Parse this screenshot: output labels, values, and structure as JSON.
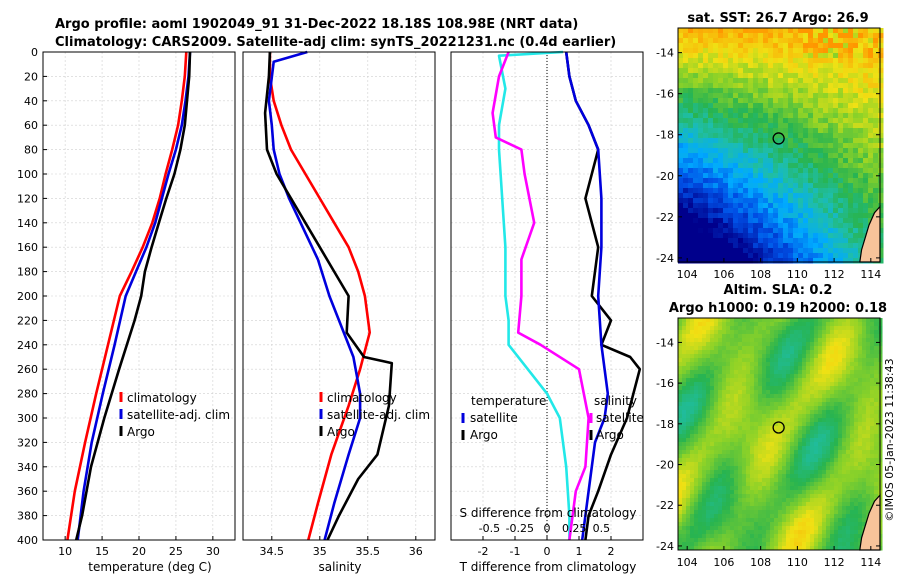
{
  "titles": {
    "line1": "Argo profile: aoml 1902049_91 31-Dec-2022 18.18S 108.98E (NRT data)",
    "line2": "Climatology: CARS2009. Satellite-adj clim: synTS_20221231.nc (0.4d earlier)"
  },
  "colors": {
    "climatology": "#ff0000",
    "satellite": "#0000dd",
    "argo": "#000000",
    "cyan": "#22e8e8",
    "magenta": "#ff00ff"
  },
  "chart_data": [
    {
      "type": "line",
      "id": "temperature",
      "xlabel": "temperature (deg C)",
      "ylabel": "",
      "xlim": [
        7,
        33
      ],
      "ylim": [
        400,
        0
      ],
      "xticks": [
        10,
        15,
        20,
        25,
        30
      ],
      "yticks": [
        0,
        20,
        40,
        60,
        80,
        100,
        120,
        140,
        160,
        180,
        200,
        220,
        240,
        260,
        280,
        300,
        320,
        340,
        360,
        380,
        400
      ],
      "legend": [
        "climatology",
        "satellite-adj. clim",
        "Argo"
      ],
      "series": [
        {
          "name": "climatology",
          "color": "#ff0000",
          "x": [
            26.4,
            26.2,
            25.8,
            25.3,
            24.5,
            23.6,
            22.8,
            21.8,
            20.5,
            19.0,
            17.4,
            15.8,
            14.2,
            12.7,
            11.3,
            10.3
          ],
          "y": [
            0,
            20,
            40,
            60,
            80,
            100,
            120,
            140,
            160,
            180,
            200,
            240,
            280,
            320,
            360,
            400
          ]
        },
        {
          "name": "satellite-adj. clim",
          "color": "#0000dd",
          "x": [
            26.9,
            26.7,
            26.3,
            25.8,
            25.0,
            24.0,
            23.1,
            22.2,
            21.0,
            19.6,
            18.2,
            16.7,
            15.1,
            13.6,
            12.5,
            11.7
          ],
          "y": [
            0,
            20,
            40,
            60,
            80,
            100,
            120,
            140,
            160,
            180,
            200,
            240,
            280,
            320,
            360,
            400
          ]
        },
        {
          "name": "Argo",
          "color": "#000000",
          "x": [
            26.9,
            26.8,
            26.5,
            26.2,
            25.6,
            24.8,
            23.7,
            22.7,
            21.7,
            20.8,
            20.3,
            19.4,
            17.3,
            15.3,
            13.5,
            12.3,
            11.5
          ],
          "y": [
            0,
            20,
            40,
            60,
            80,
            100,
            120,
            140,
            160,
            180,
            200,
            220,
            260,
            300,
            340,
            380,
            400
          ]
        }
      ]
    },
    {
      "type": "line",
      "id": "salinity",
      "xlabel": "salinity",
      "xlim": [
        34.2,
        36.2
      ],
      "ylim": [
        400,
        0
      ],
      "xticks": [
        34.5,
        35,
        35.5,
        36
      ],
      "legend": [
        "climatology",
        "satellite-adj. clim",
        "Argo"
      ],
      "series": [
        {
          "name": "climatology",
          "color": "#ff0000",
          "x": [
            34.48,
            34.48,
            34.52,
            34.6,
            34.7,
            34.85,
            35.0,
            35.15,
            35.3,
            35.4,
            35.47,
            35.52,
            35.42,
            35.3,
            35.12,
            34.98,
            34.88
          ],
          "y": [
            0,
            20,
            40,
            60,
            80,
            100,
            120,
            140,
            160,
            180,
            200,
            230,
            260,
            290,
            330,
            370,
            400
          ]
        },
        {
          "name": "satellite-adj. clim",
          "color": "#0000dd",
          "x": [
            34.87,
            34.52,
            34.47,
            34.5,
            34.52,
            34.58,
            34.68,
            34.8,
            34.98,
            35.1,
            35.2,
            35.35,
            35.42,
            35.42,
            35.3,
            35.15,
            35.05
          ],
          "y": [
            0,
            8,
            40,
            60,
            80,
            100,
            120,
            140,
            170,
            200,
            220,
            250,
            280,
            300,
            330,
            370,
            400
          ]
        },
        {
          "name": "Argo",
          "color": "#000000",
          "x": [
            34.48,
            34.47,
            34.43,
            34.45,
            34.55,
            34.7,
            34.85,
            35.0,
            35.15,
            35.3,
            35.28,
            35.46,
            35.75,
            35.72,
            35.6,
            35.4,
            35.2,
            35.08
          ],
          "y": [
            0,
            20,
            50,
            80,
            100,
            120,
            140,
            160,
            180,
            200,
            230,
            250,
            255,
            290,
            330,
            350,
            380,
            400
          ]
        }
      ]
    },
    {
      "type": "line",
      "id": "difference",
      "xlabel": "T difference from climatology",
      "x2label": "S difference from climatology",
      "xlim": [
        -3,
        3
      ],
      "ylim": [
        400,
        0
      ],
      "xticks": [
        -2,
        -1,
        0,
        1,
        2
      ],
      "x2ticks": [
        "-0.5",
        "-0.25",
        "0",
        "0.25",
        "0.5"
      ],
      "legend_temperature": [
        "temperature",
        "satellite",
        "Argo"
      ],
      "legend_salinity": [
        "salinity",
        "satellite",
        "Argo"
      ],
      "series": [
        {
          "name": "temperature satellite",
          "color": "#22e8e8",
          "x": [
            0.5,
            -1.5,
            -1.3,
            -1.5,
            -1.5,
            -1.4,
            -1.3,
            -1.3,
            -1.2,
            -1.2,
            -0.6,
            0.0,
            0.4,
            0.6,
            0.7,
            0.7
          ],
          "y": [
            0,
            3,
            30,
            60,
            80,
            120,
            160,
            200,
            220,
            240,
            260,
            280,
            300,
            340,
            380,
            400
          ]
        },
        {
          "name": "temperature Argo",
          "color": "#000000",
          "x": [
            0.6,
            0.7,
            0.9,
            1.3,
            1.6,
            1.2,
            1.6,
            1.4,
            2.0,
            1.7,
            2.6,
            2.9,
            2.5,
            2.0,
            1.6,
            1.3,
            1.2
          ],
          "y": [
            0,
            20,
            40,
            60,
            80,
            120,
            160,
            200,
            220,
            240,
            250,
            260,
            300,
            330,
            360,
            380,
            400
          ]
        },
        {
          "name": "salinity satellite",
          "color": "#ff00ff",
          "x": [
            -1.2,
            -1.5,
            -1.7,
            -1.6,
            -0.8,
            -0.7,
            -0.4,
            -0.8,
            -0.8,
            -0.8,
            -0.9,
            -0.2,
            1.0,
            1.3,
            1.2,
            0.9,
            0.7
          ],
          "y": [
            0,
            20,
            50,
            70,
            80,
            100,
            140,
            170,
            180,
            200,
            230,
            240,
            260,
            300,
            340,
            360,
            400
          ]
        },
        {
          "name": "salinity Argo",
          "color": "#0000dd",
          "x": [
            0.6,
            0.7,
            0.9,
            1.3,
            1.6,
            1.7,
            1.7,
            1.6,
            1.7,
            1.8,
            1.9,
            1.8,
            1.5,
            1.3,
            1.2,
            1.1
          ],
          "y": [
            0,
            20,
            40,
            60,
            80,
            120,
            160,
            200,
            240,
            260,
            280,
            300,
            320,
            360,
            380,
            400
          ]
        }
      ]
    },
    {
      "type": "heatmap",
      "id": "sst-map",
      "title": "sat. SST: 26.7 Argo: 26.9",
      "xticks": [
        104,
        106,
        108,
        110,
        112,
        114
      ],
      "yticks": [
        -14,
        -16,
        -18,
        -20,
        -22,
        -24
      ],
      "xlim": [
        103.5,
        114.5
      ],
      "ylim": [
        -24.2,
        -12.8
      ],
      "marker": {
        "lon": 108.98,
        "lat": -18.18
      }
    },
    {
      "type": "heatmap",
      "id": "sla-map",
      "title": "Altim. SLA: 0.2",
      "subtitle": "Argo h1000: 0.19 h2000: 0.18",
      "xticks": [
        104,
        106,
        108,
        110,
        112,
        114
      ],
      "yticks": [
        -14,
        -16,
        -18,
        -20,
        -22,
        -24
      ],
      "xlim": [
        103.5,
        114.5
      ],
      "ylim": [
        -24.2,
        -12.8
      ],
      "marker": {
        "lon": 108.98,
        "lat": -18.18
      }
    }
  ],
  "watermark": "©IMOS 05-Jan-2023 11:38:43"
}
